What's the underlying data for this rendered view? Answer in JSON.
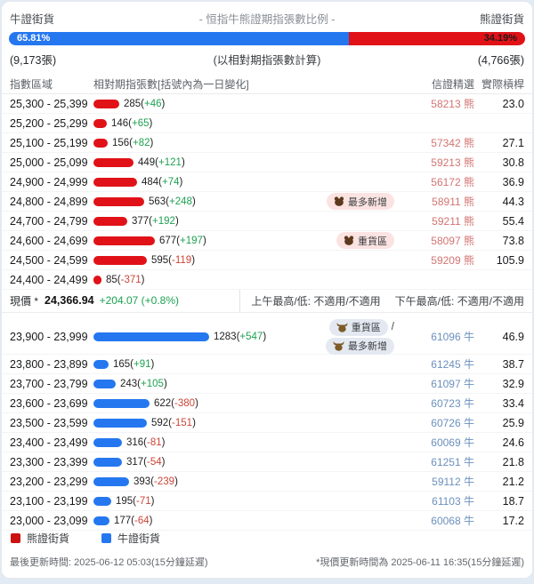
{
  "header": {
    "left_label": "牛證街貨",
    "title": "- 恒指牛熊證期指張數比例 -",
    "right_label": "熊證街貨",
    "bull_pct": "65.81%",
    "bear_pct": "34.19%",
    "bull_pct_value": 65.81,
    "bear_pct_value": 34.19,
    "bull_total": "(9,173張)",
    "subtitle": "(以相對期指張數計算)",
    "bear_total": "(4,766張)"
  },
  "table": {
    "columns": {
      "zone": "指數區域",
      "contracts": "相對期指張數[括號內為一日變化]",
      "picks": "信證精選",
      "leverage": "實際槓桿"
    },
    "max_value": 1283,
    "bear_suffix": "熊",
    "bull_suffix": "牛",
    "bear_rows": [
      {
        "range": "25,300 - 25,399",
        "value": 285,
        "change": "+46",
        "code": "58213",
        "leverage": "23.0",
        "badges": []
      },
      {
        "range": "25,200 - 25,299",
        "value": 146,
        "change": "+65",
        "code": "",
        "leverage": "",
        "badges": []
      },
      {
        "range": "25,100 - 25,199",
        "value": 156,
        "change": "+82",
        "code": "57342",
        "leverage": "27.1",
        "badges": []
      },
      {
        "range": "25,000 - 25,099",
        "value": 449,
        "change": "+121",
        "code": "59213",
        "leverage": "30.8",
        "badges": []
      },
      {
        "range": "24,900 - 24,999",
        "value": 484,
        "change": "+74",
        "code": "56172",
        "leverage": "36.9",
        "badges": []
      },
      {
        "range": "24,800 - 24,899",
        "value": 563,
        "change": "+248",
        "code": "58911",
        "leverage": "44.3",
        "badges": [
          {
            "label": "最多新增",
            "after": ""
          }
        ]
      },
      {
        "range": "24,700 - 24,799",
        "value": 377,
        "change": "+192",
        "code": "59211",
        "leverage": "55.4",
        "badges": []
      },
      {
        "range": "24,600 - 24,699",
        "value": 677,
        "change": "+197",
        "code": "58097",
        "leverage": "73.8",
        "badges": [
          {
            "label": "重貨區",
            "after": ""
          }
        ]
      },
      {
        "range": "24,500 - 24,599",
        "value": 595,
        "change": "-119",
        "code": "59209",
        "leverage": "105.9",
        "badges": []
      },
      {
        "range": "24,400 - 24,499",
        "value": 85,
        "change": "-371",
        "code": "",
        "leverage": "",
        "badges": []
      }
    ],
    "bull_rows": [
      {
        "range": "23,900 - 23,999",
        "value": 1283,
        "change": "+547",
        "code": "61096",
        "leverage": "46.9",
        "badges": [
          {
            "label": "重貨區",
            "after": "/"
          },
          {
            "label": "最多新增",
            "after": ""
          }
        ]
      },
      {
        "range": "23,800 - 23,899",
        "value": 165,
        "change": "+91",
        "code": "61245",
        "leverage": "38.7",
        "badges": []
      },
      {
        "range": "23,700 - 23,799",
        "value": 243,
        "change": "+105",
        "code": "61097",
        "leverage": "32.9",
        "badges": []
      },
      {
        "range": "23,600 - 23,699",
        "value": 622,
        "change": "-380",
        "code": "60723",
        "leverage": "33.4",
        "badges": []
      },
      {
        "range": "23,500 - 23,599",
        "value": 592,
        "change": "-151",
        "code": "60726",
        "leverage": "25.9",
        "badges": []
      },
      {
        "range": "23,400 - 23,499",
        "value": 316,
        "change": "-81",
        "code": "60069",
        "leverage": "24.6",
        "badges": []
      },
      {
        "range": "23,300 - 23,399",
        "value": 317,
        "change": "-54",
        "code": "61251",
        "leverage": "21.8",
        "badges": []
      },
      {
        "range": "23,200 - 23,299",
        "value": 393,
        "change": "-239",
        "code": "59112",
        "leverage": "21.2",
        "badges": []
      },
      {
        "range": "23,100 - 23,199",
        "value": 195,
        "change": "-71",
        "code": "61103",
        "leverage": "18.7",
        "badges": []
      },
      {
        "range": "23,000 - 23,099",
        "value": 177,
        "change": "-64",
        "code": "60068",
        "leverage": "17.2",
        "badges": []
      }
    ]
  },
  "price_row": {
    "label": "現價 *",
    "price": "24,366.94",
    "change": "+204.07 (+0.8%)",
    "am_label": "上午最高/低: 不適用/不適用",
    "pm_label": "下午最高/低: 不適用/不適用"
  },
  "legend": {
    "bear": "熊證街貨",
    "bull": "牛證街貨"
  },
  "footer": {
    "left": "最後更新時間: 2025-06-12 05:03(15分鐘延遲)",
    "right": "*現價更新時間為 2025-06-11 16:35(15分鐘延遲)"
  },
  "icons": {
    "bear_badge": "bear-face-icon",
    "bull_badge": "bull-face-icon"
  },
  "colors": {
    "bull": "#2577f0",
    "bear": "#e01218",
    "positive": "#1ea152",
    "negative": "#cc4437",
    "bear_code": "#d27472",
    "bull_code": "#6b90bd",
    "bear_badge_bg": "#fbe3e2",
    "bull_badge_bg": "#e4e9f1"
  },
  "chart_data": {
    "type": "bar",
    "orientation": "horizontal",
    "title": "- 恒指牛熊證期指張數比例 -",
    "subtitle": "(以相對期指張數計算)",
    "legend_position": "bottom",
    "grid": false,
    "series": [
      {
        "name": "熊證街貨",
        "color": "#e01218",
        "categories": [
          "25,300-25,399",
          "25,200-25,299",
          "25,100-25,199",
          "25,000-25,099",
          "24,900-24,999",
          "24,800-24,899",
          "24,700-24,799",
          "24,600-24,699",
          "24,500-24,599",
          "24,400-24,499"
        ],
        "values": [
          285,
          146,
          156,
          449,
          484,
          563,
          377,
          677,
          595,
          85
        ],
        "one_day_changes": [
          46,
          65,
          82,
          121,
          74,
          248,
          192,
          197,
          -119,
          -371
        ]
      },
      {
        "name": "牛證街貨",
        "color": "#2577f0",
        "categories": [
          "23,900-23,999",
          "23,800-23,899",
          "23,700-23,799",
          "23,600-23,699",
          "23,500-23,599",
          "23,400-23,499",
          "23,300-23,399",
          "23,200-23,299",
          "23,100-23,199",
          "23,000-23,099"
        ],
        "values": [
          1283,
          165,
          243,
          622,
          592,
          316,
          317,
          393,
          195,
          177
        ],
        "one_day_changes": [
          547,
          91,
          105,
          -380,
          -151,
          -81,
          -54,
          -239,
          -71,
          -64
        ]
      }
    ],
    "ratio": {
      "bull_pct": 65.81,
      "bear_pct": 34.19,
      "bull_total_contracts": 9173,
      "bear_total_contracts": 4766
    },
    "current_price": 24366.94,
    "price_change": 204.07,
    "price_change_pct": 0.8,
    "annotations": [
      "最多新增 @ 24,800-24,899 (熊)",
      "重貨區 @ 24,600-24,699 (熊)",
      "重貨區/最多新增 @ 23,900-23,999 (牛)"
    ]
  }
}
